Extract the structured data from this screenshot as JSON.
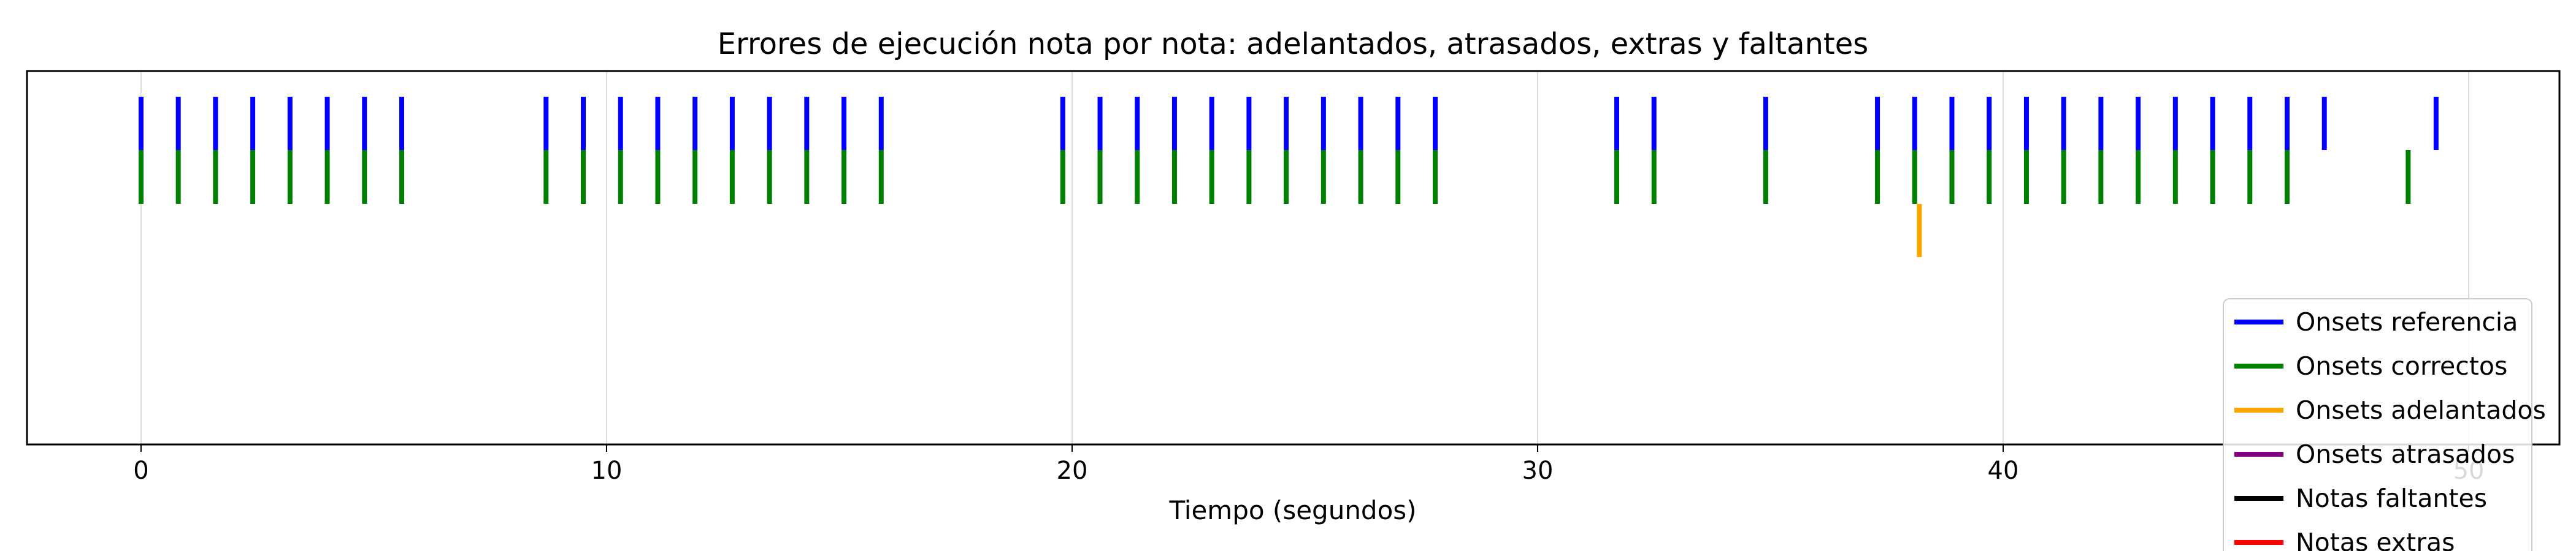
{
  "chart_data": {
    "type": "event-raster",
    "title": "Errores de ejecución nota por nota: adelantados, atrasados, extras y faltantes",
    "xlabel": "Tiempo (segundos)",
    "ylabel": "",
    "xlim": [
      -2.45,
      51.95
    ],
    "x_ticks": [
      0,
      10,
      20,
      30,
      40,
      50
    ],
    "x_tick_labels": [
      "0",
      "10",
      "20",
      "30",
      "40",
      "50"
    ],
    "grid": true,
    "legend_position": "bottom-right",
    "series": [
      {
        "name": "Onsets referencia",
        "color": "#0000ff",
        "values": [
          0.0,
          0.8,
          1.6,
          2.4,
          3.2,
          4.0,
          4.8,
          5.6,
          8.7,
          9.5,
          10.3,
          11.1,
          11.9,
          12.7,
          13.5,
          14.3,
          15.1,
          15.9,
          19.8,
          20.6,
          21.4,
          22.2,
          23.0,
          23.8,
          24.6,
          25.4,
          26.2,
          27.0,
          27.8,
          31.7,
          32.5,
          34.9,
          37.3,
          38.1,
          38.9,
          39.7,
          40.5,
          41.3,
          42.1,
          42.9,
          43.7,
          44.5,
          45.3,
          46.1,
          46.9,
          49.3
        ]
      },
      {
        "name": "Onsets correctos",
        "color": "#008000",
        "values": [
          0.0,
          0.8,
          1.6,
          2.4,
          3.2,
          4.0,
          4.8,
          5.6,
          8.7,
          9.5,
          10.3,
          11.1,
          11.9,
          12.7,
          13.5,
          14.3,
          15.1,
          15.9,
          19.8,
          20.6,
          21.4,
          22.2,
          23.0,
          23.8,
          24.6,
          25.4,
          26.2,
          27.0,
          27.8,
          31.7,
          32.5,
          34.9,
          37.3,
          38.1,
          38.9,
          39.7,
          40.5,
          41.3,
          42.1,
          42.9,
          43.7,
          44.5,
          45.3,
          46.1,
          48.7
        ]
      },
      {
        "name": "Onsets adelantados",
        "color": "#ffa500",
        "values": [
          38.2
        ]
      },
      {
        "name": "Onsets atrasados",
        "color": "#800080",
        "values": []
      },
      {
        "name": "Notas faltantes",
        "color": "#000000",
        "values": []
      },
      {
        "name": "Notas extras",
        "color": "#ff0000",
        "values": []
      }
    ]
  }
}
